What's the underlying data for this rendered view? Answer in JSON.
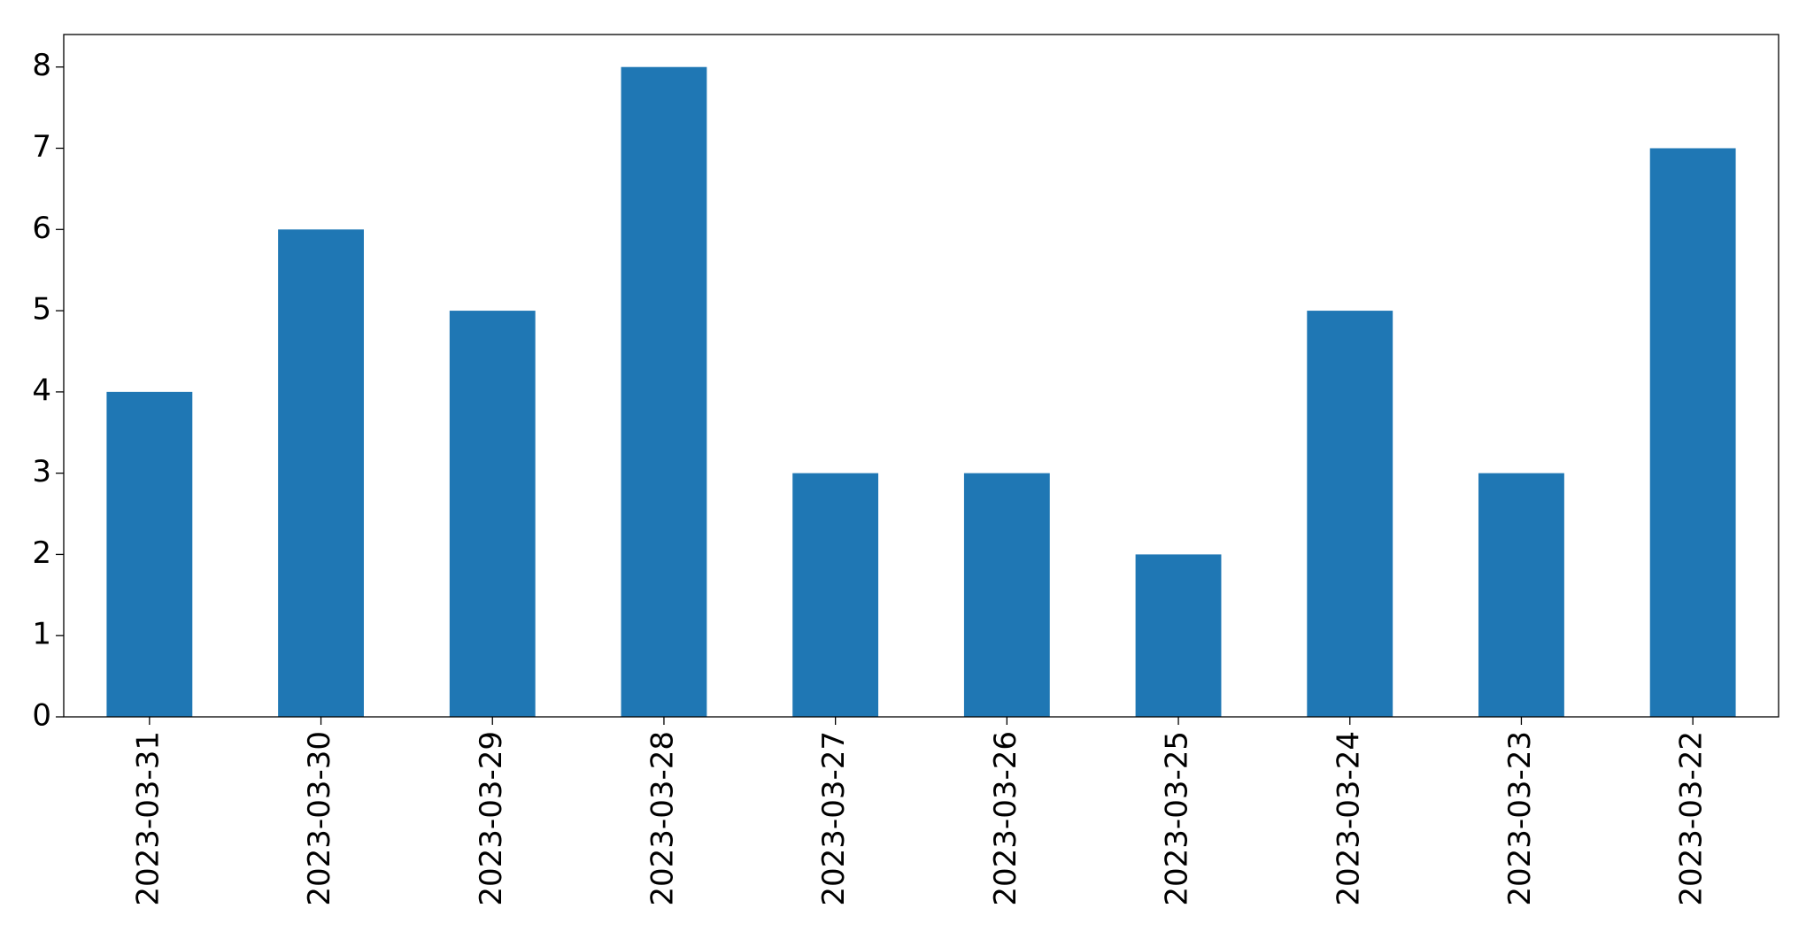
{
  "chart_data": {
    "type": "bar",
    "categories": [
      "2023-03-31",
      "2023-03-30",
      "2023-03-29",
      "2023-03-28",
      "2023-03-27",
      "2023-03-26",
      "2023-03-25",
      "2023-03-24",
      "2023-03-23",
      "2023-03-22"
    ],
    "values": [
      4,
      6,
      5,
      8,
      3,
      3,
      2,
      5,
      3,
      7
    ],
    "color": "#1f77b4",
    "ylim": [
      0,
      8.4
    ],
    "yticks": [
      0,
      1,
      2,
      3,
      4,
      5,
      6,
      7,
      8
    ],
    "grid": false
  }
}
